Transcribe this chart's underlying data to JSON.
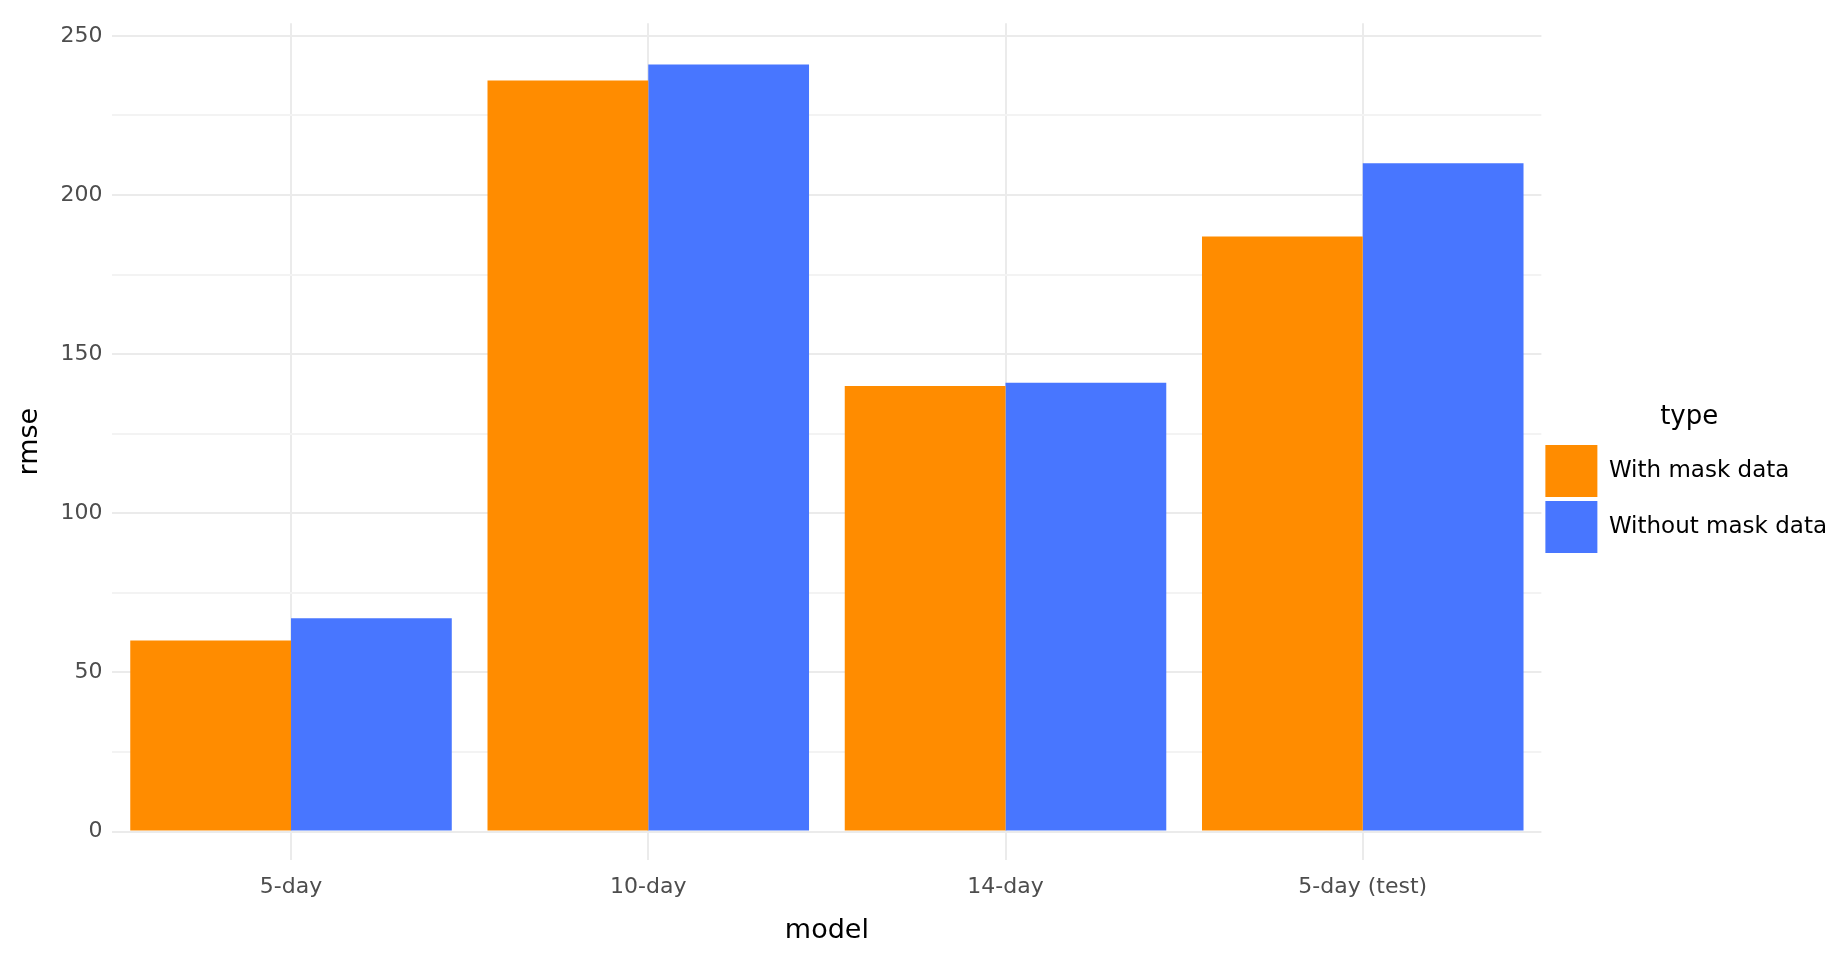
{
  "chart_data": {
    "type": "bar",
    "xlabel": "model",
    "ylabel": "rmse",
    "legend_title": "type",
    "categories": [
      "5-day",
      "10-day",
      "14-day",
      "5-day (test)"
    ],
    "series": [
      {
        "name": "With mask data",
        "color": "#ff8c00",
        "values": [
          60,
          236,
          140,
          187
        ]
      },
      {
        "name": "Without mask data",
        "color": "#4876ff",
        "values": [
          67,
          241,
          141,
          210
        ]
      }
    ],
    "ylim": [
      -9,
      254
    ],
    "yticks": [
      0,
      {
        "value": 25,
        "label": null
      },
      50,
      {
        "value": 75,
        "label": null
      },
      100,
      {
        "value": 125,
        "label": null
      },
      150,
      {
        "value": 175,
        "label": null
      },
      200,
      {
        "value": 225,
        "label": null
      },
      250
    ],
    "grid": true,
    "legend": "right"
  }
}
